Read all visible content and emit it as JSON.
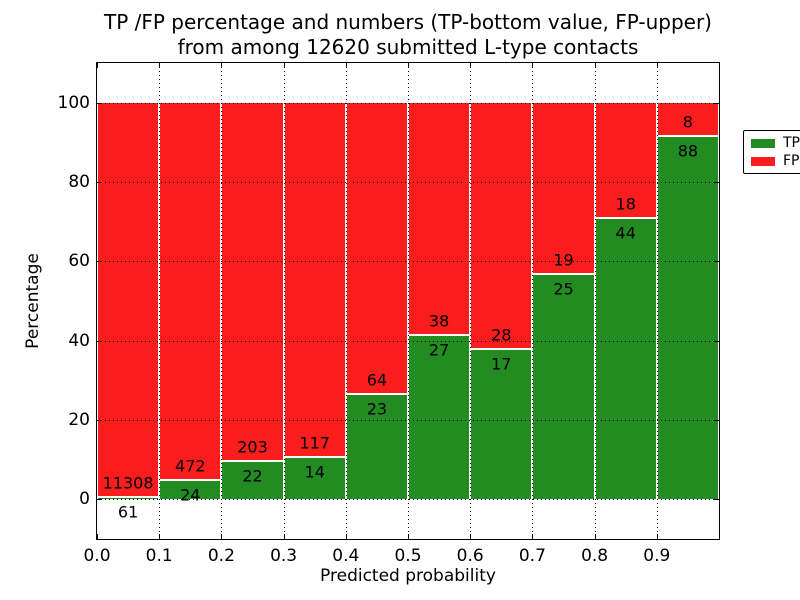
{
  "title": {
    "line1": "TP /FP percentage and numbers (TP-bottom value, FP-upper)",
    "line2": "from among 12620 submitted L-type contacts"
  },
  "chart_data": {
    "type": "bar",
    "stacked": true,
    "normalized_to": 100,
    "title": "TP /FP percentage and numbers (TP-bottom value, FP-upper) from among 12620 submitted L-type contacts",
    "total_submitted_contacts": 12620,
    "xlabel": "Predicted probability",
    "ylabel": "Percentage",
    "xlim": [
      0.0,
      1.0
    ],
    "ylim": [
      -10,
      110
    ],
    "x_tick_labels": [
      "0.0",
      "0.1",
      "0.2",
      "0.3",
      "0.4",
      "0.5",
      "0.6",
      "0.7",
      "0.8",
      "0.9"
    ],
    "x_tick_values": [
      0.0,
      0.1,
      0.2,
      0.3,
      0.4,
      0.5,
      0.6,
      0.7,
      0.8,
      0.9
    ],
    "y_tick_values": [
      0,
      20,
      40,
      60,
      80,
      100
    ],
    "grid": "dotted",
    "legend_position": "upper-right",
    "legend": {
      "items": [
        {
          "label": "TP",
          "color": "#228b22"
        },
        {
          "label": "FP",
          "color": "#fa1d1d"
        }
      ]
    },
    "bins": [
      {
        "x0": 0.0,
        "x1": 0.1,
        "tp_count": 61,
        "fp_count": 11308
      },
      {
        "x0": 0.1,
        "x1": 0.2,
        "tp_count": 24,
        "fp_count": 472
      },
      {
        "x0": 0.2,
        "x1": 0.3,
        "tp_count": 22,
        "fp_count": 203
      },
      {
        "x0": 0.3,
        "x1": 0.4,
        "tp_count": 14,
        "fp_count": 117
      },
      {
        "x0": 0.4,
        "x1": 0.5,
        "tp_count": 23,
        "fp_count": 64
      },
      {
        "x0": 0.5,
        "x1": 0.6,
        "tp_count": 27,
        "fp_count": 38
      },
      {
        "x0": 0.6,
        "x1": 0.7,
        "tp_count": 17,
        "fp_count": 28
      },
      {
        "x0": 0.7,
        "x1": 0.8,
        "tp_count": 25,
        "fp_count": 19
      },
      {
        "x0": 0.8,
        "x1": 0.9,
        "tp_count": 44,
        "fp_count": 18
      },
      {
        "x0": 0.9,
        "x1": 1.0,
        "tp_count": 88,
        "fp_count": 8
      }
    ],
    "colors": {
      "tp": "#228b22",
      "fp": "#fa1d1d",
      "bar_edge": "#ffffff",
      "grid": "#000000",
      "frame": "#000000",
      "background": "#ffffff",
      "text": "#000000"
    }
  }
}
